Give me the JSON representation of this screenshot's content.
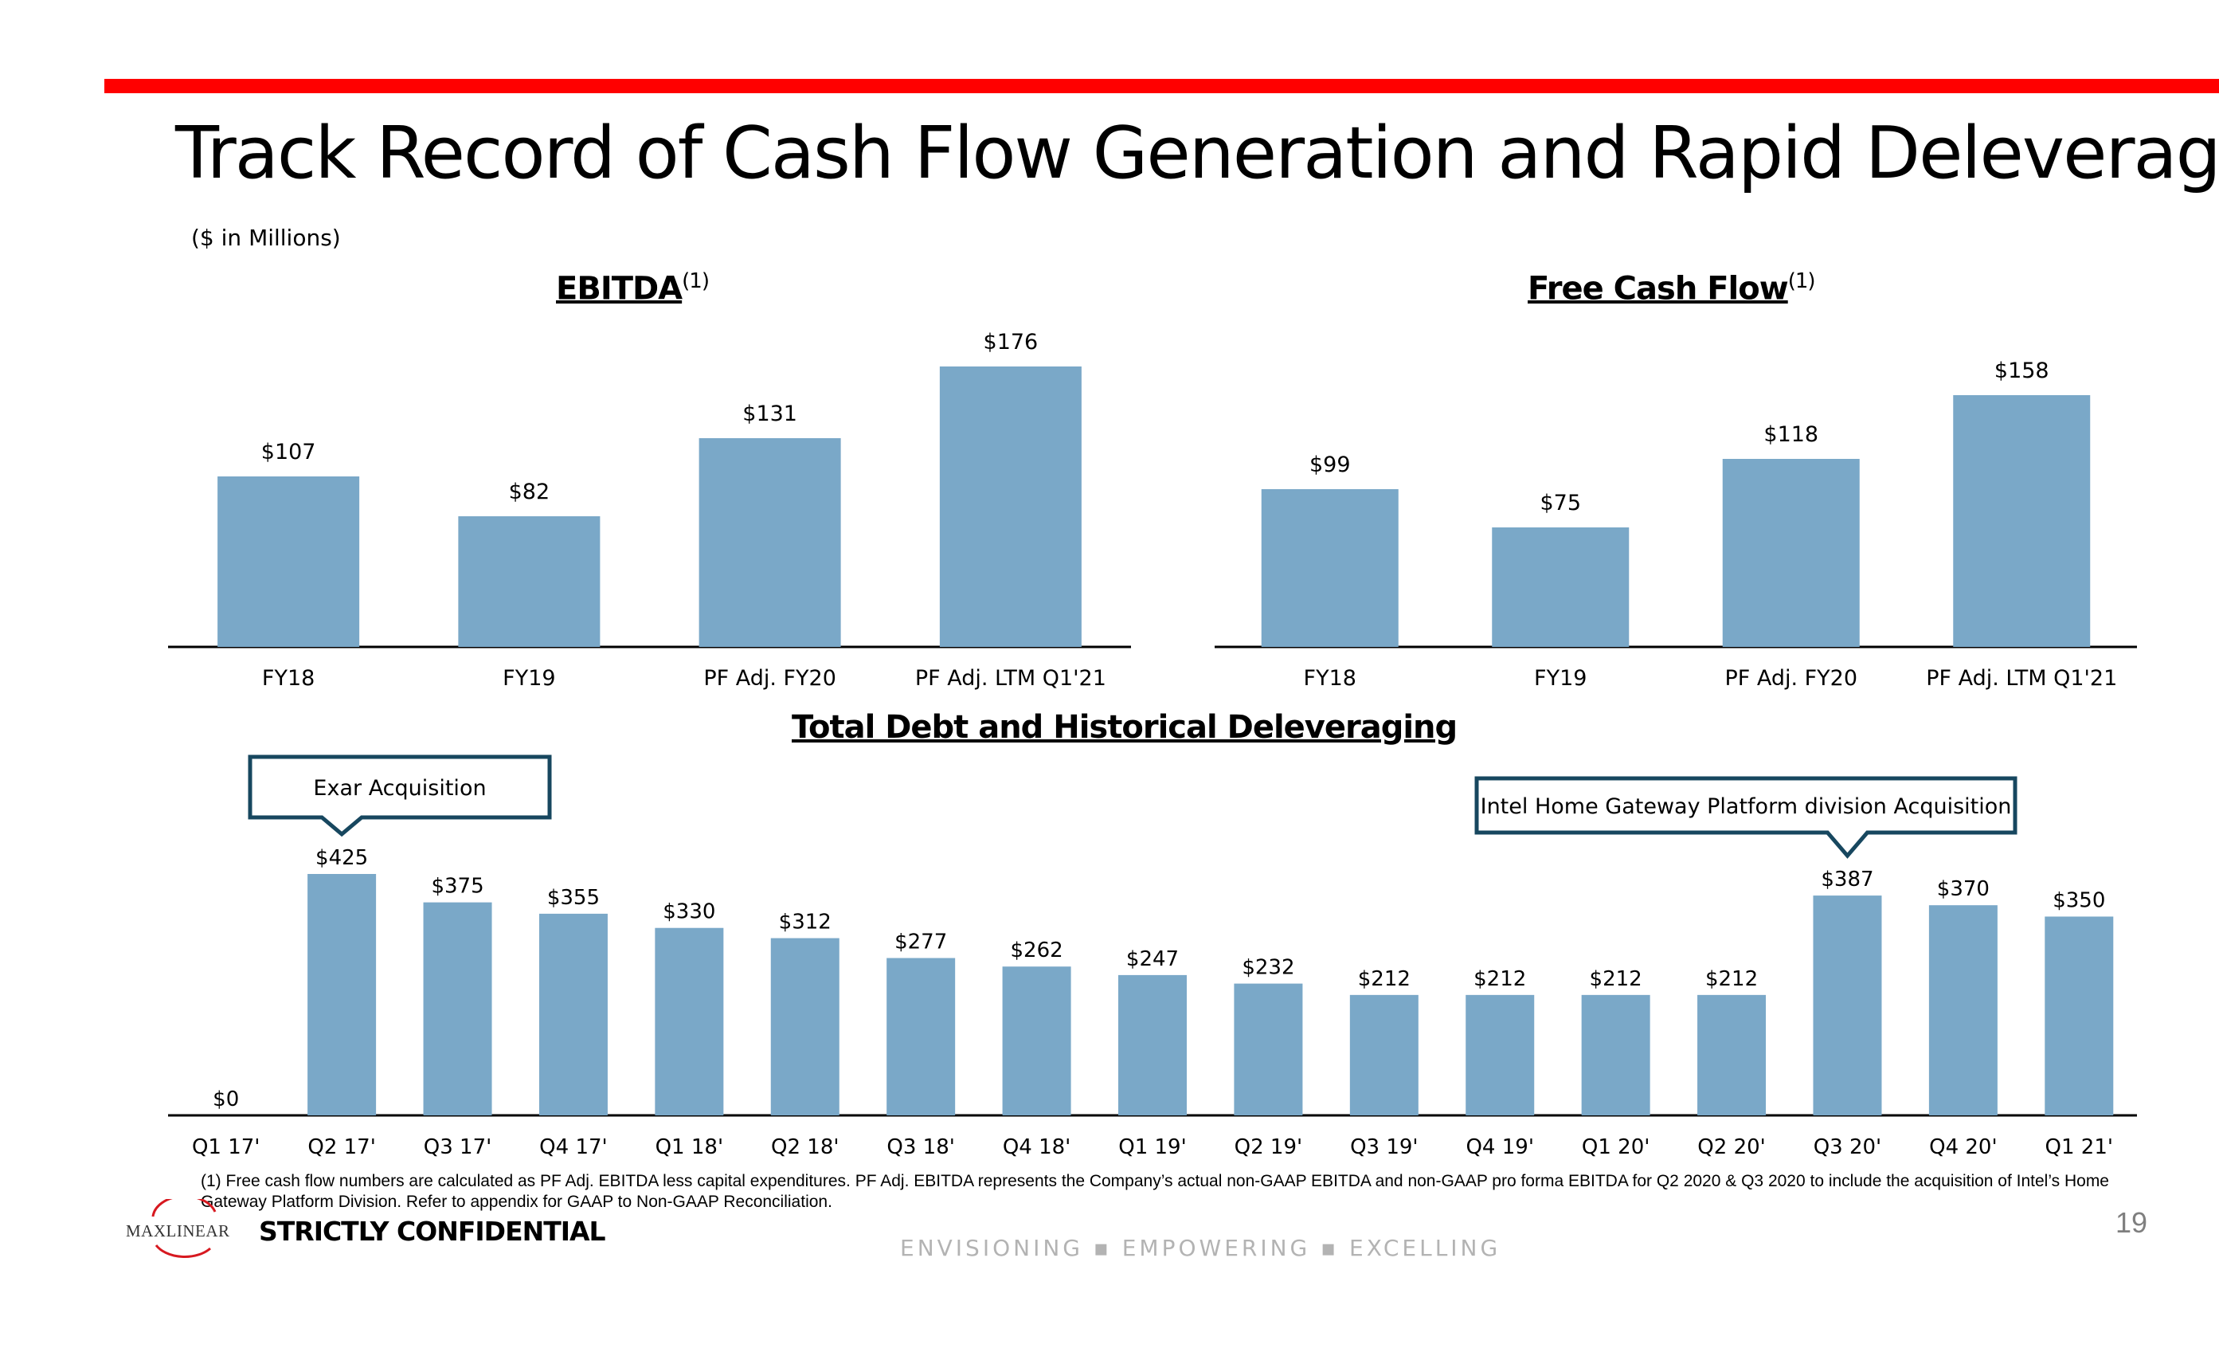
{
  "page": {
    "title": "Track Record of Cash Flow Generation and Rapid Deleveraging",
    "units": "($ in Millions)",
    "footnote": "(1) Free cash flow numbers are calculated as PF Adj. EBITDA less capital expenditures. PF Adj. EBITDA represents the Company’s actual non-GAAP EBITDA and non-GAAP pro forma EBITDA for Q2 2020 & Q3 2020 to include the acquisition of Intel’s Home Gateway Platform Division. Refer to appendix for GAAP to Non-GAAP Reconciliation.",
    "confidential": "STRICTLY CONFIDENTIAL",
    "tagline": "ENVISIONING ▪ EMPOWERING ▪ EXCELLING",
    "page_number": "19",
    "logo_text": "MaxLinear"
  },
  "colors": {
    "bar": "#7aa8c8",
    "accent_red": "#ff0000",
    "callout_border": "#17475f",
    "axis": "#000000"
  },
  "chart_data": [
    {
      "type": "bar",
      "title": "EBITDA",
      "title_note": "(1)",
      "categories": [
        "FY18",
        "FY19",
        "PF Adj. FY20",
        "PF Adj. LTM Q1'21"
      ],
      "values": [
        107,
        82,
        131,
        176
      ],
      "labels": [
        "$107",
        "$82",
        "$131",
        "$176"
      ],
      "xlabel": "",
      "ylabel": "",
      "ylim": [
        0,
        200
      ],
      "grid": false
    },
    {
      "type": "bar",
      "title": "Free Cash Flow",
      "title_note": "(1)",
      "categories": [
        "FY18",
        "FY19",
        "PF Adj. FY20",
        "PF Adj. LTM Q1'21"
      ],
      "values": [
        99,
        75,
        118,
        158
      ],
      "labels": [
        "$99",
        "$75",
        "$118",
        "$158"
      ],
      "xlabel": "",
      "ylabel": "",
      "ylim": [
        0,
        200
      ],
      "grid": false
    },
    {
      "type": "bar",
      "title": "Total Debt and Historical Deleveraging",
      "categories": [
        "Q1 17'",
        "Q2 17'",
        "Q3 17'",
        "Q4 17'",
        "Q1 18'",
        "Q2 18'",
        "Q3 18'",
        "Q4 18'",
        "Q1 19'",
        "Q2 19'",
        "Q3 19'",
        "Q4 19'",
        "Q1 20'",
        "Q2 20'",
        "Q3 20'",
        "Q4 20'",
        "Q1 21'"
      ],
      "values": [
        0,
        425,
        375,
        355,
        330,
        312,
        277,
        262,
        247,
        232,
        212,
        212,
        212,
        212,
        387,
        370,
        350
      ],
      "labels": [
        "$0",
        "$425",
        "$375",
        "$355",
        "$330",
        "$312",
        "$277",
        "$262",
        "$247",
        "$232",
        "$212",
        "$212",
        "$212",
        "$212",
        "$387",
        "$370",
        "$350"
      ],
      "xlabel": "",
      "ylabel": "",
      "ylim": [
        0,
        500
      ],
      "grid": false,
      "annotations": [
        {
          "text": "Exar Acquisition",
          "category": "Q2 17'"
        },
        {
          "text": "Intel Home Gateway Platform division Acquisition",
          "category": "Q3 20'"
        }
      ]
    }
  ]
}
